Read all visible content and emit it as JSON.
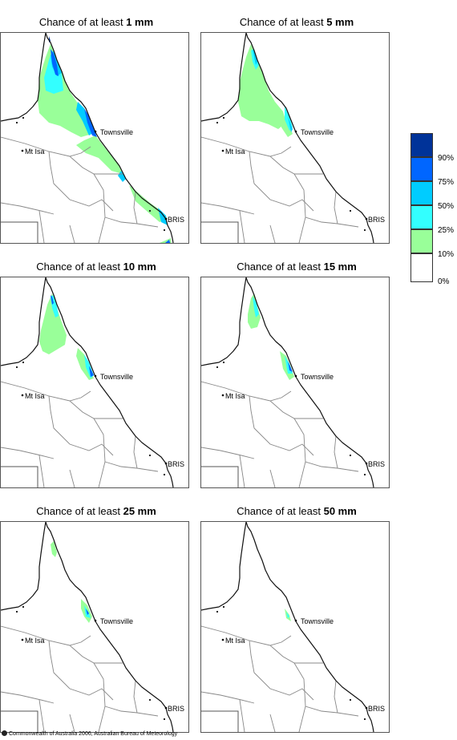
{
  "panels": [
    {
      "title_prefix": "Chance of at least ",
      "title_value": "1 mm",
      "coverage": "1mm"
    },
    {
      "title_prefix": "Chance of at least ",
      "title_value": "5 mm",
      "coverage": "5mm"
    },
    {
      "title_prefix": "Chance of at least ",
      "title_value": "10 mm",
      "coverage": "10mm"
    },
    {
      "title_prefix": "Chance of at least ",
      "title_value": "15 mm",
      "coverage": "15mm"
    },
    {
      "title_prefix": "Chance of at least ",
      "title_value": "25 mm",
      "coverage": "25mm"
    },
    {
      "title_prefix": "Chance of at least ",
      "title_value": "50 mm",
      "coverage": "50mm"
    }
  ],
  "places": {
    "townsville": "Townsville",
    "mt_isa": "Mt Isa",
    "brisbane": "BRIS"
  },
  "legend": {
    "labels": [
      "90%",
      "75%",
      "50%",
      "25%",
      "10%",
      "0%"
    ],
    "colors": [
      "#003399",
      "#0066ff",
      "#00ccff",
      "#33ffff",
      "#99ff99",
      "#ffffff"
    ]
  },
  "copyright": "Commonwealth of Australia 2006, Australian Bureau of Meteorology"
}
